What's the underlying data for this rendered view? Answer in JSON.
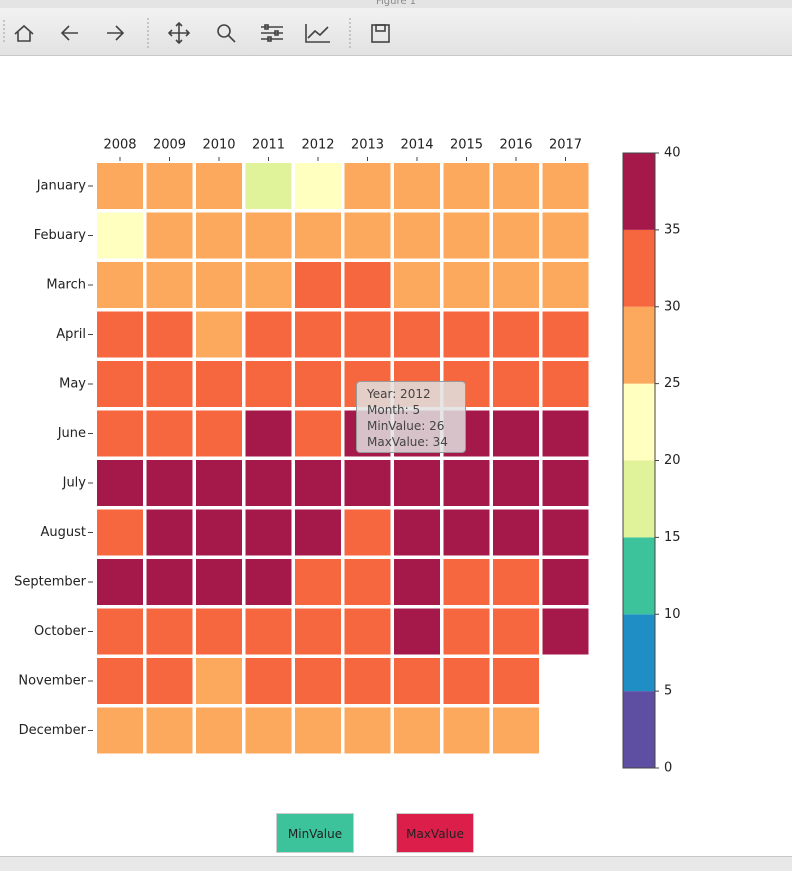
{
  "window": {
    "title": "Figure 1"
  },
  "chart_data": {
    "type": "heatmap",
    "x_categories": [
      "2008",
      "2009",
      "2010",
      "2011",
      "2012",
      "2013",
      "2014",
      "2015",
      "2016",
      "2017"
    ],
    "y_categories": [
      "January",
      "Febuary",
      "March",
      "April",
      "May",
      "June",
      "July",
      "August",
      "September",
      "October",
      "November",
      "December"
    ],
    "values": [
      [
        27,
        27,
        27,
        18,
        22,
        27,
        27,
        27,
        27,
        27
      ],
      [
        23,
        27,
        27,
        27,
        27,
        27,
        27,
        27,
        27,
        27
      ],
      [
        28,
        28,
        28,
        28,
        31,
        31,
        28,
        28,
        28,
        28
      ],
      [
        31,
        31,
        29,
        31,
        31,
        31,
        32,
        31,
        31,
        31
      ],
      [
        32,
        32,
        32,
        32,
        30,
        32,
        32,
        32,
        32,
        32
      ],
      [
        33,
        33,
        34,
        36,
        34,
        36,
        36,
        36,
        36,
        36
      ],
      [
        37,
        37,
        37,
        37,
        37,
        37,
        37,
        37,
        37,
        37
      ],
      [
        34,
        36,
        36,
        36,
        36,
        34,
        36,
        36,
        36,
        36
      ],
      [
        36,
        36,
        36,
        36,
        34,
        34,
        36,
        34,
        34,
        36
      ],
      [
        32,
        32,
        32,
        32,
        32,
        32,
        36,
        32,
        32,
        36
      ],
      [
        31,
        31,
        29,
        31,
        31,
        31,
        31,
        31,
        31,
        null
      ],
      [
        28,
        28,
        28,
        28,
        28,
        28,
        28,
        28,
        28,
        null
      ]
    ],
    "colorbar": {
      "lim": [
        0,
        40
      ],
      "ticks": [
        0,
        5,
        10,
        15,
        20,
        25,
        30,
        35,
        40
      ],
      "colors": [
        "#5e4fa2",
        "#1f8ec4",
        "#3cc39c",
        "#e0f39a",
        "#ffffbf",
        "#fca95d",
        "#f6663f",
        "#a5184a"
      ]
    }
  },
  "tooltip": {
    "lines": [
      "Year: 2012",
      "Month: 5",
      "MinValue: 26",
      "MaxValue: 34"
    ]
  },
  "buttons": [
    {
      "label": "MinValue",
      "color": "#3cc39c"
    },
    {
      "label": "MaxValue",
      "color": "#dc1f4a"
    }
  ]
}
